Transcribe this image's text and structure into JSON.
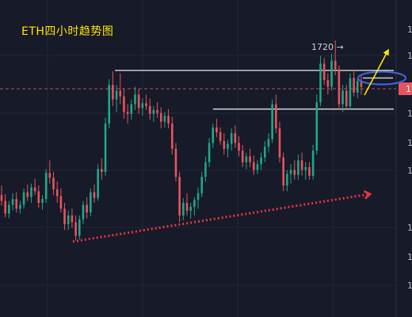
{
  "title": "ETH四小时趋势图",
  "colors": {
    "background": "#161a29",
    "grid": "#232838",
    "up_candle": "#1fa888",
    "down_candle": "#e8545d",
    "range_lines": "#d9d9d9",
    "trendline": "#e8363f",
    "arrow_breakout": "#ffe600",
    "ellipse_marker": "#3a63d8",
    "price_line": "#e8545d",
    "title": "#ffe600",
    "annotation_text": "#d0d4dc"
  },
  "chart_data": {
    "type": "candlestick",
    "title": "ETH四小时趋势图",
    "xlabel": "",
    "ylabel": "",
    "grid": true,
    "ylim": [
      1450,
      1745
    ],
    "y_tick_labels": [
      "1",
      "1",
      "1",
      "1",
      "1",
      "1",
      "1",
      "1"
    ],
    "current_price_label": "1",
    "annotations": [
      {
        "id": "price-callout",
        "text": "1720 →",
        "target_price": 1720
      }
    ],
    "candles": [
      [
        1576,
        1586,
        1565,
        1570
      ],
      [
        1570,
        1577,
        1553,
        1557
      ],
      [
        1557,
        1570,
        1552,
        1566
      ],
      [
        1566,
        1578,
        1560,
        1572
      ],
      [
        1572,
        1579,
        1558,
        1562
      ],
      [
        1562,
        1570,
        1557,
        1566
      ],
      [
        1566,
        1583,
        1562,
        1579
      ],
      [
        1579,
        1587,
        1570,
        1574
      ],
      [
        1574,
        1588,
        1568,
        1584
      ],
      [
        1584,
        1593,
        1576,
        1580
      ],
      [
        1580,
        1586,
        1563,
        1568
      ],
      [
        1568,
        1576,
        1561,
        1572
      ],
      [
        1572,
        1603,
        1568,
        1599
      ],
      [
        1599,
        1612,
        1588,
        1594
      ],
      [
        1594,
        1600,
        1576,
        1582
      ],
      [
        1582,
        1590,
        1568,
        1575
      ],
      [
        1575,
        1583,
        1558,
        1562
      ],
      [
        1562,
        1568,
        1540,
        1546
      ],
      [
        1546,
        1560,
        1540,
        1555
      ],
      [
        1555,
        1562,
        1542,
        1548
      ],
      [
        1548,
        1555,
        1529,
        1534
      ],
      [
        1534,
        1555,
        1530,
        1551
      ],
      [
        1551,
        1570,
        1546,
        1566
      ],
      [
        1566,
        1574,
        1552,
        1558
      ],
      [
        1558,
        1583,
        1554,
        1579
      ],
      [
        1579,
        1587,
        1568,
        1573
      ],
      [
        1573,
        1608,
        1570,
        1603
      ],
      [
        1603,
        1614,
        1592,
        1600
      ],
      [
        1600,
        1656,
        1596,
        1650
      ],
      [
        1650,
        1696,
        1645,
        1690
      ],
      [
        1690,
        1704,
        1668,
        1675
      ],
      [
        1675,
        1690,
        1662,
        1684
      ],
      [
        1684,
        1702,
        1670,
        1678
      ],
      [
        1678,
        1686,
        1655,
        1662
      ],
      [
        1662,
        1670,
        1650,
        1660
      ],
      [
        1660,
        1675,
        1654,
        1670
      ],
      [
        1670,
        1688,
        1664,
        1680
      ],
      [
        1680,
        1686,
        1660,
        1666
      ],
      [
        1666,
        1676,
        1658,
        1671
      ],
      [
        1671,
        1680,
        1664,
        1668
      ],
      [
        1668,
        1676,
        1654,
        1660
      ],
      [
        1660,
        1668,
        1652,
        1664
      ],
      [
        1664,
        1672,
        1656,
        1661
      ],
      [
        1661,
        1667,
        1645,
        1652
      ],
      [
        1652,
        1662,
        1646,
        1658
      ],
      [
        1658,
        1665,
        1645,
        1650
      ],
      [
        1650,
        1657,
        1618,
        1624
      ],
      [
        1624,
        1630,
        1590,
        1595
      ],
      [
        1595,
        1600,
        1548,
        1555
      ],
      [
        1555,
        1573,
        1550,
        1568
      ],
      [
        1568,
        1578,
        1555,
        1560
      ],
      [
        1560,
        1568,
        1552,
        1564
      ],
      [
        1564,
        1574,
        1555,
        1571
      ],
      [
        1571,
        1584,
        1562,
        1578
      ],
      [
        1578,
        1600,
        1574,
        1595
      ],
      [
        1595,
        1616,
        1590,
        1610
      ],
      [
        1610,
        1635,
        1605,
        1630
      ],
      [
        1630,
        1650,
        1625,
        1646
      ],
      [
        1646,
        1655,
        1636,
        1641
      ],
      [
        1641,
        1646,
        1628,
        1632
      ],
      [
        1632,
        1640,
        1618,
        1624
      ],
      [
        1624,
        1633,
        1615,
        1629
      ],
      [
        1629,
        1645,
        1622,
        1640
      ],
      [
        1640,
        1648,
        1625,
        1630
      ],
      [
        1630,
        1637,
        1616,
        1622
      ],
      [
        1622,
        1628,
        1605,
        1610
      ],
      [
        1610,
        1620,
        1603,
        1616
      ],
      [
        1616,
        1624,
        1605,
        1610
      ],
      [
        1610,
        1617,
        1597,
        1602
      ],
      [
        1602,
        1612,
        1598,
        1608
      ],
      [
        1608,
        1620,
        1602,
        1615
      ],
      [
        1615,
        1632,
        1610,
        1626
      ],
      [
        1626,
        1640,
        1620,
        1634
      ],
      [
        1634,
        1675,
        1630,
        1670
      ],
      [
        1670,
        1680,
        1640,
        1645
      ],
      [
        1645,
        1652,
        1610,
        1615
      ],
      [
        1615,
        1620,
        1580,
        1586
      ],
      [
        1586,
        1602,
        1580,
        1598
      ],
      [
        1598,
        1608,
        1588,
        1602
      ],
      [
        1602,
        1612,
        1592,
        1597
      ],
      [
        1597,
        1618,
        1592,
        1612
      ],
      [
        1612,
        1620,
        1596,
        1602
      ],
      [
        1602,
        1610,
        1592,
        1605
      ],
      [
        1605,
        1610,
        1592,
        1596
      ],
      [
        1596,
        1628,
        1592,
        1622
      ],
      [
        1622,
        1680,
        1618,
        1672
      ],
      [
        1672,
        1720,
        1668,
        1712
      ],
      [
        1712,
        1718,
        1690,
        1695
      ],
      [
        1695,
        1702,
        1680,
        1688
      ],
      [
        1688,
        1722,
        1684,
        1715
      ],
      [
        1715,
        1736,
        1700,
        1706
      ],
      [
        1706,
        1710,
        1664,
        1670
      ],
      [
        1670,
        1690,
        1662,
        1684
      ],
      [
        1684,
        1690,
        1664,
        1668
      ],
      [
        1668,
        1702,
        1664,
        1697
      ],
      [
        1697,
        1705,
        1678,
        1682
      ],
      [
        1682,
        1698,
        1676,
        1694
      ],
      [
        1694,
        1700,
        1680,
        1688
      ]
    ],
    "levels": [
      {
        "name": "range-top",
        "price": 1705
      },
      {
        "name": "range-mid",
        "price": 1665
      },
      {
        "name": "current-price",
        "price": 1686
      }
    ],
    "trendline": {
      "from": [
        0,
        1528
      ],
      "to": [
        97,
        1577
      ]
    },
    "breakout_arrow": {
      "from": [
        96,
        1674
      ],
      "to": [
        99,
        1724
      ]
    },
    "ellipse_marker": {
      "center": [
        98,
        1702
      ]
    }
  }
}
